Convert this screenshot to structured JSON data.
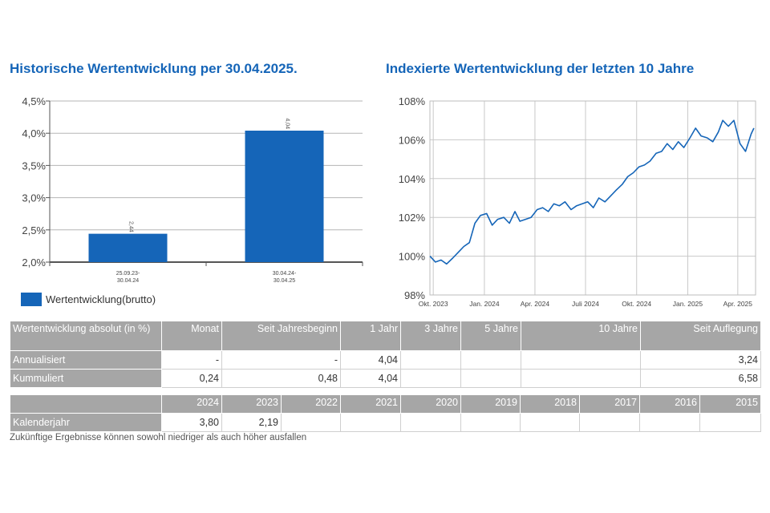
{
  "left_title": "Historische Wertentwicklung per 30.04.2025.",
  "right_title": "Indexierte Wertentwicklung der letzten 10 Jahre",
  "chart_data": [
    {
      "type": "bar",
      "categories": [
        [
          "25.09.23-",
          "30.04.24"
        ],
        [
          "30.04.24-",
          "30.04.25"
        ]
      ],
      "values": [
        2.44,
        4.04
      ],
      "value_labels": [
        "2,44",
        "4,04"
      ],
      "ylim": [
        2.0,
        4.5
      ],
      "yticks": [
        "2,0%",
        "2,5%",
        "3,0%",
        "3,5%",
        "4,0%",
        "4,5%"
      ],
      "legend": "Wertentwicklung(brutto)",
      "color": "#1565b8",
      "grid": true
    },
    {
      "type": "line",
      "ylim": [
        98,
        108
      ],
      "yticks": [
        "98%",
        "100%",
        "102%",
        "104%",
        "106%",
        "108%"
      ],
      "xticks": [
        "Okt. 2023",
        "Jan. 2024",
        "Apr. 2024",
        "Juli 2024",
        "Okt. 2024",
        "Jan. 2025",
        "Apr. 2025"
      ],
      "x": [
        "2023-09-25",
        "2023-10-05",
        "2023-10-15",
        "2023-10-25",
        "2023-11-05",
        "2023-11-15",
        "2023-11-25",
        "2023-12-05",
        "2023-12-15",
        "2023-12-25",
        "2024-01-05",
        "2024-01-15",
        "2024-01-25",
        "2024-02-05",
        "2024-02-15",
        "2024-02-25",
        "2024-03-05",
        "2024-03-15",
        "2024-03-25",
        "2024-04-05",
        "2024-04-15",
        "2024-04-25",
        "2024-05-05",
        "2024-05-15",
        "2024-05-25",
        "2024-06-05",
        "2024-06-15",
        "2024-06-25",
        "2024-07-05",
        "2024-07-15",
        "2024-07-25",
        "2024-08-05",
        "2024-08-15",
        "2024-08-25",
        "2024-09-05",
        "2024-09-15",
        "2024-09-25",
        "2024-10-05",
        "2024-10-15",
        "2024-10-25",
        "2024-11-05",
        "2024-11-15",
        "2024-11-25",
        "2024-12-05",
        "2024-12-15",
        "2024-12-25",
        "2025-01-05",
        "2025-01-15",
        "2025-01-25",
        "2025-02-05",
        "2025-02-15",
        "2025-02-25",
        "2025-03-05",
        "2025-03-15",
        "2025-03-25",
        "2025-04-05",
        "2025-04-15",
        "2025-04-25",
        "2025-04-30"
      ],
      "values": [
        100.0,
        99.7,
        99.8,
        99.6,
        99.9,
        100.2,
        100.5,
        100.7,
        101.7,
        102.1,
        102.2,
        101.6,
        101.9,
        102.0,
        101.7,
        102.3,
        101.8,
        101.9,
        102.0,
        102.4,
        102.5,
        102.3,
        102.7,
        102.6,
        102.8,
        102.4,
        102.6,
        102.7,
        102.8,
        102.5,
        103.0,
        102.8,
        103.1,
        103.4,
        103.7,
        104.1,
        104.3,
        104.6,
        104.7,
        104.9,
        105.3,
        105.4,
        105.8,
        105.5,
        105.9,
        105.6,
        106.1,
        106.6,
        106.2,
        106.1,
        105.9,
        106.4,
        107.0,
        106.7,
        107.0,
        105.8,
        105.4,
        106.3,
        106.6
      ],
      "color": "#1565b8",
      "grid": true
    }
  ],
  "perf_table": {
    "headers": [
      "Wertentwicklung absolut (in %)",
      "Monat",
      "Seit Jahresbeginn",
      "1 Jahr",
      "3 Jahre",
      "5 Jahre",
      "10 Jahre",
      "Seit Auflegung"
    ],
    "rows": [
      {
        "label": "Annualisiert",
        "cells": [
          "-",
          "-",
          "4,04",
          "",
          "",
          "",
          "3,24"
        ]
      },
      {
        "label": "Kummuliert",
        "cells": [
          "0,24",
          "0,48",
          "4,04",
          "",
          "",
          "",
          "6,58"
        ]
      }
    ]
  },
  "year_table": {
    "headers": [
      "",
      "2024",
      "2023",
      "2022",
      "2021",
      "2020",
      "2019",
      "2018",
      "2017",
      "2016",
      "2015"
    ],
    "rows": [
      {
        "label": "Kalenderjahr",
        "cells": [
          "3,80",
          "2,19",
          "",
          "",
          "",
          "",
          "",
          "",
          "",
          ""
        ]
      }
    ]
  },
  "footnote": "Zukünftige Ergebnisse können sowohl niedriger als auch höher ausfallen"
}
